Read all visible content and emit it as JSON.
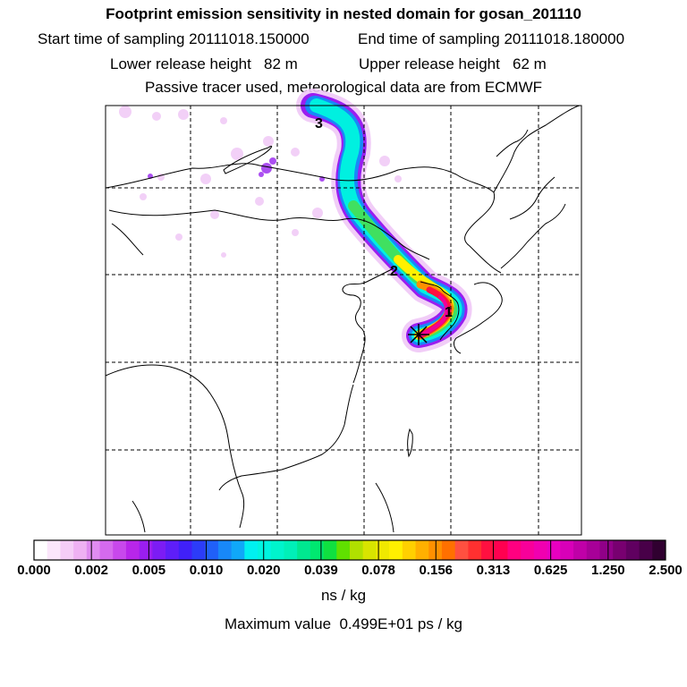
{
  "header": {
    "title": "Footprint emission sensitivity in nested domain for gosan_201110",
    "start_time": "Start time of sampling 20111018.150000",
    "end_time": "End time of sampling 20111018.180000",
    "lower_release": "Lower release height   82 m",
    "upper_release": "Upper release height   62 m",
    "tracer_note": "Passive tracer used, meteorological data are from ECMWF"
  },
  "map": {
    "day_markers": [
      "3",
      "2",
      "1"
    ],
    "receptor_marker": "gosan-station",
    "plume_colors": [
      "#ffccff",
      "#cc66ff",
      "#6633ff",
      "#3399ff",
      "#00ffee",
      "#33ee66",
      "#ffee00",
      "#ff9900",
      "#ff0066",
      "#cc0099"
    ]
  },
  "colorbar": {
    "tick_labels": [
      "0.000",
      "0.002",
      "0.005",
      "0.010",
      "0.020",
      "0.039",
      "0.078",
      "0.156",
      "0.313",
      "0.625",
      "1.250",
      "2.500"
    ],
    "colors": [
      "#ffffff",
      "#fbe6fb",
      "#f5cdf7",
      "#efb1f3",
      "#e08cf0",
      "#d56aee",
      "#c848ec",
      "#b826ea",
      "#9a1ef0",
      "#7c1cf4",
      "#5e1ef8",
      "#4020f8",
      "#2c3cf8",
      "#2060f8",
      "#1888f8",
      "#10a8f8",
      "#00f0f0",
      "#00f4e0",
      "#00f4cc",
      "#00f0b8",
      "#00e890",
      "#00e870",
      "#10e040",
      "#60e000",
      "#b0e000",
      "#d8e400",
      "#f0e800",
      "#fff000",
      "#ffd000",
      "#ffb000",
      "#ff9000",
      "#ff7000",
      "#ff5040",
      "#ff3030",
      "#ff1040",
      "#ff0050",
      "#ff0080",
      "#f8009a",
      "#f000b0",
      "#e800c0",
      "#d800b8",
      "#c000a8",
      "#a80098",
      "#900088",
      "#780070",
      "#600060",
      "#480048",
      "#300030"
    ],
    "units": "ns / kg"
  },
  "footer": {
    "max_value": "Maximum value  0.499E+01 ps / kg"
  }
}
